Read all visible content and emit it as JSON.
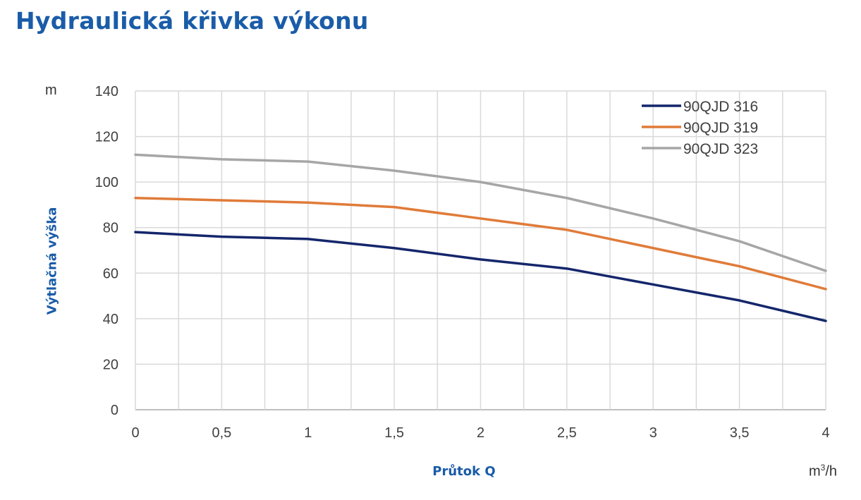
{
  "title": "Hydraulická křivka výkonu",
  "chart_data": {
    "type": "line",
    "title": "",
    "ylabel": "Výtlačná výška",
    "y_unit": "m",
    "xlabel": "Průtok Q",
    "x_unit_base": "m",
    "x_unit_sup": "3",
    "x_unit_tail": "/h",
    "x": [
      0,
      0.5,
      1,
      1.5,
      2,
      2.5,
      3,
      3.5,
      4
    ],
    "x_tick_labels": [
      "0",
      "0,5",
      "1",
      "1,5",
      "2",
      "2,5",
      "3",
      "3,5",
      "4"
    ],
    "y_ticks": [
      0,
      20,
      40,
      60,
      80,
      100,
      120,
      140
    ],
    "xlim": [
      0,
      4
    ],
    "ylim": [
      0,
      140
    ],
    "grid": true,
    "legend_position": "top-right",
    "series": [
      {
        "name": "90QJD 316",
        "color": "#14266b",
        "values": [
          78,
          76,
          75,
          71,
          66,
          62,
          55,
          48,
          39
        ]
      },
      {
        "name": "90QJD 319",
        "color": "#e07b39",
        "values": [
          93,
          92,
          91,
          89,
          84,
          79,
          71,
          63,
          53
        ]
      },
      {
        "name": "90QJD 323",
        "color": "#a6a6a6",
        "values": [
          112,
          110,
          109,
          105,
          100,
          93,
          84,
          74,
          61
        ]
      }
    ]
  }
}
